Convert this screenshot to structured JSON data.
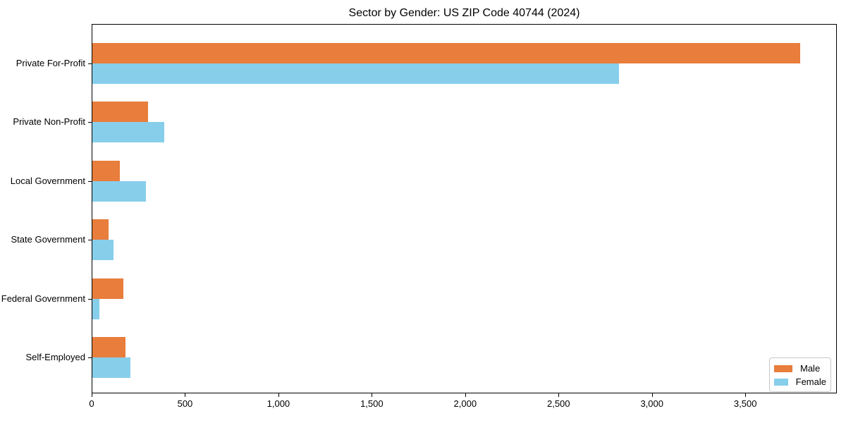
{
  "figure": {
    "title": "Sector by Gender: US ZIP Code 40744 (2024)"
  },
  "chart_data": {
    "type": "bar",
    "orientation": "horizontal",
    "title": "Sector by Gender: US ZIP Code 40744 (2024)",
    "categories": [
      "Private For-Profit",
      "Private Non-Profit",
      "Local Government",
      "State Government",
      "Federal Government",
      "Self-Employed"
    ],
    "series": [
      {
        "name": "Male",
        "color": "#e87d3c",
        "values": [
          3790,
          300,
          148,
          87,
          166,
          177
        ]
      },
      {
        "name": "Female",
        "color": "#87ceeb",
        "values": [
          2820,
          385,
          287,
          113,
          38,
          203
        ]
      }
    ],
    "xlabel": "",
    "ylabel": "",
    "xlim": [
      0,
      3990
    ],
    "xticks": [
      0,
      500,
      1000,
      1500,
      2000,
      2500,
      3000,
      3500
    ],
    "xtick_labels": [
      "0",
      "500",
      "1,000",
      "1,500",
      "2,000",
      "2,500",
      "3,000",
      "3,500"
    ],
    "grid": false,
    "legend": {
      "position": "lower-right",
      "labels": [
        "Male",
        "Female"
      ]
    }
  },
  "colors": {
    "male": "#e87d3c",
    "female": "#87ceeb",
    "spine": "#000000",
    "legend_border": "#c8c8c8",
    "background": "#ffffff"
  }
}
